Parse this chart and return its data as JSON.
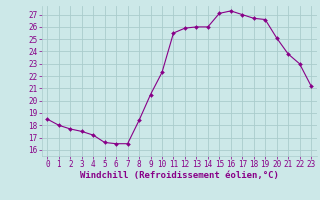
{
  "x": [
    0,
    1,
    2,
    3,
    4,
    5,
    6,
    7,
    8,
    9,
    10,
    11,
    12,
    13,
    14,
    15,
    16,
    17,
    18,
    19,
    20,
    21,
    22,
    23
  ],
  "y": [
    18.5,
    18.0,
    17.7,
    17.5,
    17.2,
    16.6,
    16.5,
    16.5,
    18.4,
    20.5,
    22.3,
    25.5,
    25.9,
    26.0,
    26.0,
    27.1,
    27.3,
    27.0,
    26.7,
    26.6,
    25.1,
    23.8,
    23.0,
    21.2
  ],
  "line_color": "#880088",
  "marker": "D",
  "marker_size": 2.0,
  "bg_color": "#cce8e8",
  "grid_color": "#aacccc",
  "xlabel": "Windchill (Refroidissement éolien,°C)",
  "ylim": [
    15.5,
    27.7
  ],
  "xlim": [
    -0.5,
    23.5
  ],
  "yticks": [
    16,
    17,
    18,
    19,
    20,
    21,
    22,
    23,
    24,
    25,
    26,
    27
  ],
  "xticks": [
    0,
    1,
    2,
    3,
    4,
    5,
    6,
    7,
    8,
    9,
    10,
    11,
    12,
    13,
    14,
    15,
    16,
    17,
    18,
    19,
    20,
    21,
    22,
    23
  ],
  "tick_color": "#880088",
  "label_fontsize": 6.5,
  "tick_fontsize": 5.5,
  "linewidth": 0.8
}
